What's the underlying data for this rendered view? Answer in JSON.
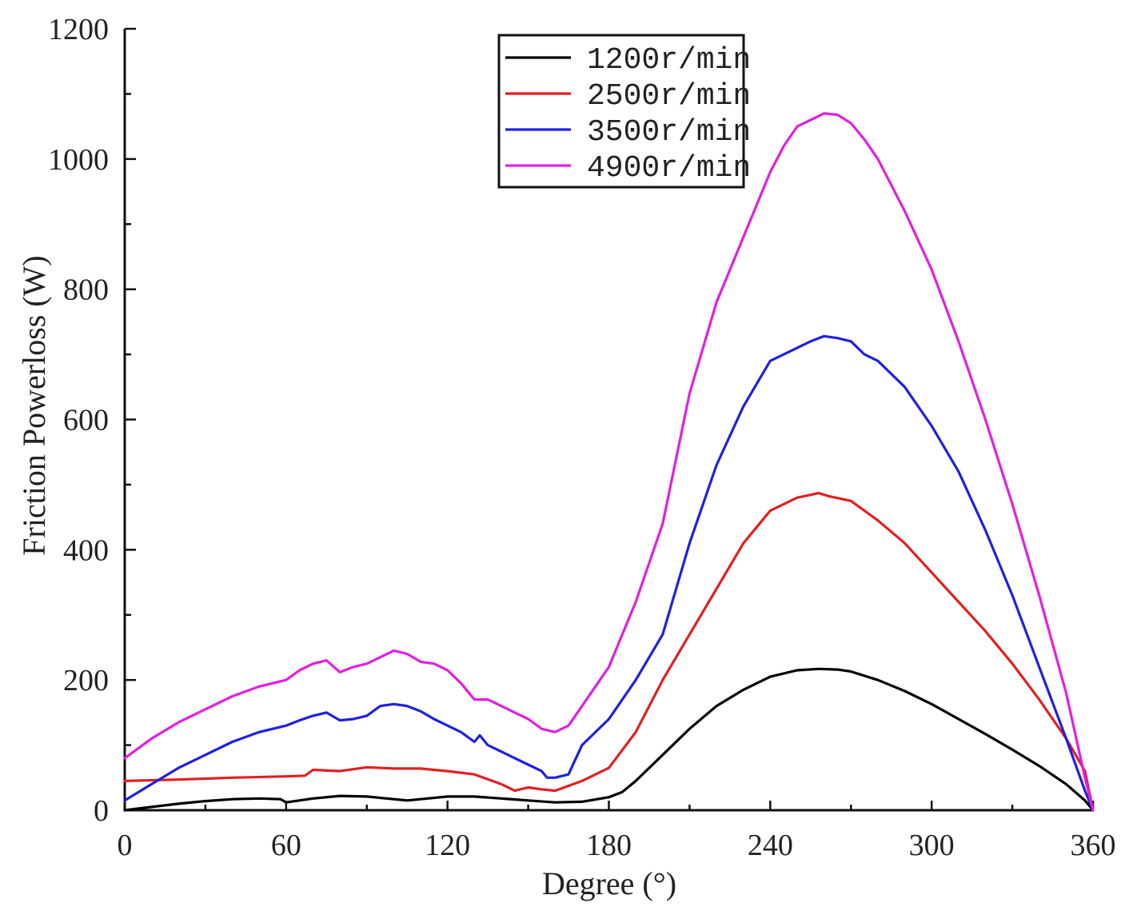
{
  "chart_data": {
    "type": "line",
    "title": "",
    "xlabel": "Degree (°)",
    "ylabel": "Friction Powerloss (W)",
    "xlim": [
      0,
      360
    ],
    "ylim": [
      0,
      1200
    ],
    "xticks": [
      0,
      60,
      120,
      180,
      240,
      300,
      360
    ],
    "yticks": [
      0,
      200,
      400,
      600,
      800,
      1000,
      1200
    ],
    "grid": false,
    "legend_position": "top-center",
    "series": [
      {
        "name": "1200r/min",
        "color": "#000000",
        "x": [
          0,
          10,
          20,
          30,
          40,
          50,
          58,
          60,
          70,
          80,
          90,
          100,
          105,
          110,
          120,
          130,
          140,
          150,
          160,
          170,
          180,
          185,
          190,
          200,
          210,
          220,
          230,
          240,
          250,
          258,
          265,
          270,
          280,
          290,
          300,
          310,
          320,
          330,
          340,
          350,
          357,
          360
        ],
        "y": [
          0,
          5,
          10,
          14,
          17,
          18,
          17,
          12,
          18,
          22,
          21,
          17,
          15,
          17,
          21,
          21,
          18,
          15,
          12,
          13,
          20,
          28,
          45,
          85,
          125,
          160,
          185,
          205,
          215,
          217,
          216,
          213,
          200,
          183,
          163,
          140,
          117,
          93,
          68,
          40,
          15,
          0
        ]
      },
      {
        "name": "2500r/min",
        "color": "#e02020",
        "x": [
          0,
          20,
          40,
          60,
          67,
          70,
          80,
          90,
          100,
          110,
          120,
          130,
          140,
          145,
          150,
          155,
          160,
          170,
          180,
          190,
          200,
          210,
          220,
          230,
          240,
          250,
          258,
          262,
          270,
          280,
          290,
          300,
          310,
          320,
          330,
          340,
          350,
          357,
          360
        ],
        "y": [
          45,
          47,
          50,
          52,
          53,
          62,
          60,
          66,
          64,
          64,
          60,
          55,
          40,
          30,
          35,
          32,
          30,
          45,
          65,
          120,
          200,
          270,
          340,
          410,
          460,
          480,
          487,
          482,
          475,
          445,
          410,
          365,
          320,
          275,
          225,
          170,
          110,
          60,
          0
        ]
      },
      {
        "name": "3500r/min",
        "color": "#2020e0",
        "x": [
          0,
          10,
          20,
          30,
          40,
          50,
          60,
          65,
          70,
          75,
          80,
          85,
          90,
          95,
          100,
          105,
          110,
          115,
          120,
          125,
          130,
          132,
          135,
          140,
          145,
          150,
          155,
          157,
          160,
          165,
          170,
          180,
          190,
          200,
          210,
          220,
          230,
          240,
          245,
          250,
          255,
          260,
          265,
          270,
          275,
          280,
          285,
          290,
          300,
          310,
          320,
          330,
          340,
          350,
          357,
          360
        ],
        "y": [
          15,
          40,
          65,
          85,
          105,
          120,
          130,
          138,
          145,
          150,
          138,
          140,
          145,
          160,
          163,
          160,
          152,
          140,
          130,
          120,
          105,
          115,
          100,
          90,
          80,
          70,
          60,
          50,
          50,
          55,
          100,
          140,
          200,
          270,
          410,
          530,
          620,
          690,
          700,
          710,
          720,
          728,
          725,
          720,
          700,
          690,
          670,
          650,
          590,
          520,
          430,
          330,
          220,
          110,
          30,
          0
        ]
      },
      {
        "name": "4900r/min",
        "color": "#e020e0",
        "x": [
          0,
          10,
          20,
          30,
          40,
          50,
          60,
          65,
          70,
          75,
          80,
          85,
          90,
          95,
          100,
          105,
          110,
          115,
          120,
          125,
          130,
          135,
          140,
          145,
          150,
          155,
          160,
          165,
          170,
          180,
          190,
          200,
          210,
          220,
          230,
          240,
          245,
          250,
          255,
          260,
          265,
          270,
          275,
          280,
          285,
          290,
          300,
          310,
          320,
          330,
          340,
          350,
          357,
          360
        ],
        "y": [
          80,
          110,
          135,
          155,
          175,
          190,
          200,
          215,
          225,
          230,
          212,
          220,
          225,
          235,
          245,
          240,
          228,
          225,
          215,
          195,
          170,
          170,
          160,
          150,
          140,
          125,
          120,
          130,
          160,
          220,
          320,
          440,
          640,
          780,
          880,
          980,
          1020,
          1050,
          1060,
          1070,
          1068,
          1055,
          1030,
          1000,
          960,
          920,
          830,
          720,
          600,
          470,
          330,
          180,
          50,
          0
        ]
      }
    ]
  }
}
